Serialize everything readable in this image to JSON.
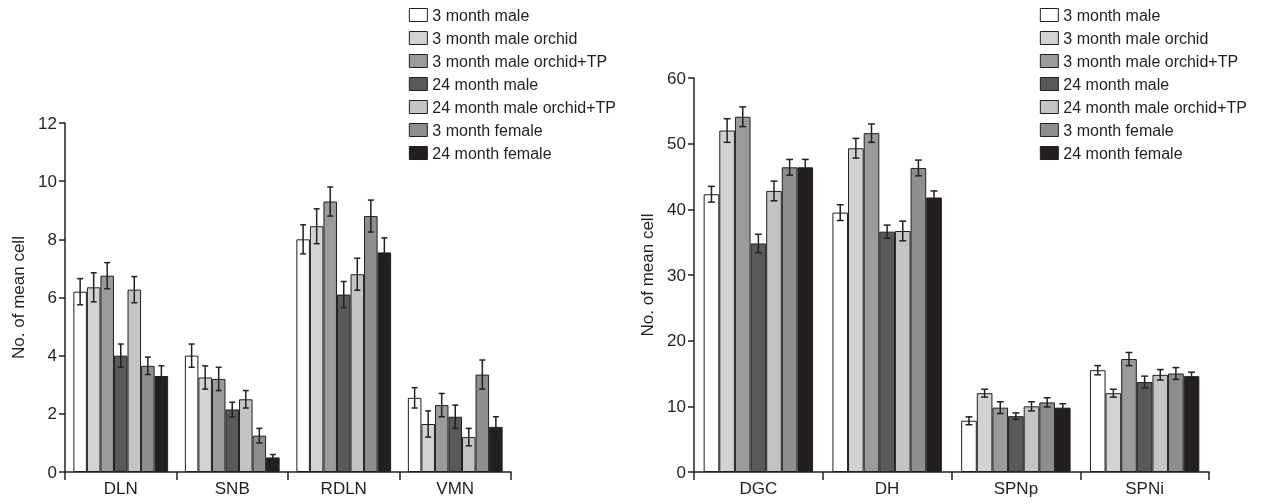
{
  "chart_data": [
    {
      "type": "bar",
      "ylabel": "No. of mean cell",
      "categories": [
        "DLN",
        "SNB",
        "RDLN",
        "VMN"
      ],
      "ylim": [
        0,
        12
      ],
      "yticks": [
        0,
        2,
        4,
        6,
        8,
        10,
        12
      ],
      "grid": false,
      "legend": "top right",
      "series": [
        {
          "name": "3 month male",
          "color": "#ffffff",
          "values": [
            6.2,
            4.0,
            8.0,
            2.55
          ],
          "errors": [
            0.45,
            0.4,
            0.5,
            0.35
          ]
        },
        {
          "name": "3 month male orchid",
          "color": "#d3d3d5",
          "values": [
            6.35,
            3.25,
            8.45,
            1.65
          ],
          "errors": [
            0.5,
            0.4,
            0.6,
            0.45
          ]
        },
        {
          "name": "3 month male orchid+TP",
          "color": "#9a9b9d",
          "values": [
            6.75,
            3.2,
            9.3,
            2.3
          ],
          "errors": [
            0.45,
            0.4,
            0.5,
            0.4
          ]
        },
        {
          "name": "24 month male",
          "color": "#58595b",
          "values": [
            4.0,
            2.15,
            6.1,
            1.9
          ],
          "errors": [
            0.4,
            0.25,
            0.45,
            0.4
          ]
        },
        {
          "name": "24 month male orchid+TP",
          "color": "#c4c4c4",
          "values": [
            6.27,
            2.5,
            6.8,
            1.2
          ],
          "errors": [
            0.45,
            0.3,
            0.55,
            0.3
          ]
        },
        {
          "name": "3 month female",
          "color": "#8e8e8e",
          "values": [
            3.65,
            1.25,
            8.8,
            3.35
          ],
          "errors": [
            0.3,
            0.25,
            0.55,
            0.5
          ]
        },
        {
          "name": "24 month female",
          "color": "#231f20",
          "values": [
            3.3,
            0.5,
            7.55,
            1.55
          ],
          "errors": [
            0.35,
            0.1,
            0.5,
            0.35
          ]
        }
      ]
    },
    {
      "type": "bar",
      "ylabel": "No. of mean cell",
      "categories": [
        "DGC",
        "DH",
        "SPNp",
        "SPNi"
      ],
      "ylim": [
        0,
        60
      ],
      "yticks": [
        0,
        10,
        20,
        30,
        40,
        50,
        60
      ],
      "grid": false,
      "legend": "top right",
      "series": [
        {
          "name": "3 month male",
          "color": "#ffffff",
          "values": [
            42.3,
            39.5,
            7.8,
            15.5
          ],
          "errors": [
            1.2,
            1.2,
            0.6,
            0.7
          ]
        },
        {
          "name": "3 month male orchid",
          "color": "#d3d3d5",
          "values": [
            52,
            49.3,
            12,
            12
          ],
          "errors": [
            1.8,
            1.5,
            0.6,
            0.6
          ]
        },
        {
          "name": "3 month male orchid+TP",
          "color": "#9a9b9d",
          "values": [
            54.1,
            51.6,
            9.8,
            17.2
          ],
          "errors": [
            1.5,
            1.4,
            0.9,
            1
          ]
        },
        {
          "name": "24 month male",
          "color": "#58595b",
          "values": [
            34.8,
            36.6,
            8.5,
            13.7
          ],
          "errors": [
            1.4,
            1,
            0.5,
            0.9
          ]
        },
        {
          "name": "24 month male orchid+TP",
          "color": "#c4c4c4",
          "values": [
            42.8,
            36.7,
            10,
            14.8
          ],
          "errors": [
            1.5,
            1.5,
            0.7,
            0.8
          ]
        },
        {
          "name": "3 month female",
          "color": "#8e8e8e",
          "values": [
            46.4,
            46.3,
            10.6,
            15
          ],
          "errors": [
            1.2,
            1.2,
            0.7,
            0.9
          ]
        },
        {
          "name": "24 month female",
          "color": "#231f20",
          "values": [
            46.4,
            41.8,
            9.8,
            14.6
          ],
          "errors": [
            1.2,
            1,
            0.6,
            0.6
          ]
        }
      ]
    }
  ]
}
